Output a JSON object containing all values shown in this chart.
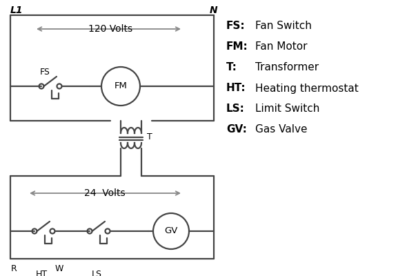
{
  "bg_color": "#ffffff",
  "line_color": "#444444",
  "arrow_color": "#888888",
  "legend_items": [
    [
      "FS:",
      "Fan Switch"
    ],
    [
      "FM:",
      "Fan Motor"
    ],
    [
      "T:",
      "Transformer"
    ],
    [
      "HT:",
      "Heating thermostat"
    ],
    [
      "LS:",
      "Limit Switch"
    ],
    [
      "GV:",
      "Gas Valve"
    ]
  ],
  "label_L1": "L1",
  "label_N": "N",
  "label_120V": "120 Volts",
  "label_24V": "24  Volts",
  "label_T": "T",
  "label_FS": "FS",
  "label_FM": "FM",
  "label_R": "R",
  "label_W": "W",
  "label_HT": "HT",
  "label_LS": "LS",
  "label_GV": "GV"
}
